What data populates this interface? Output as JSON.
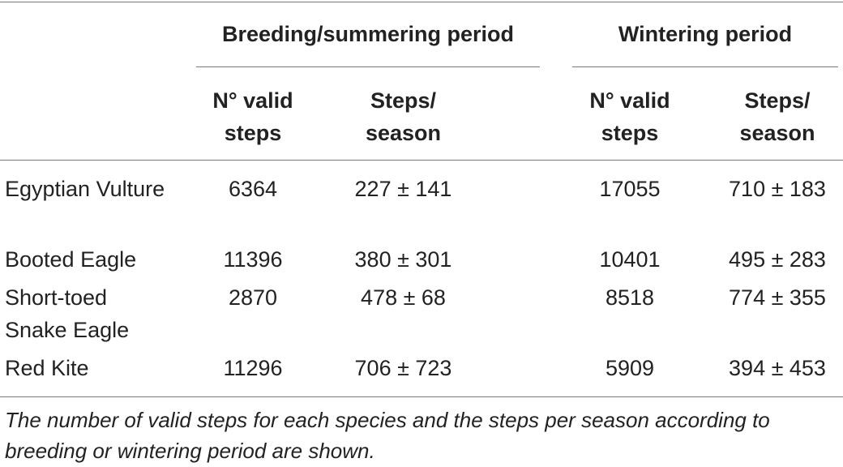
{
  "header": {
    "group_breeding": "Breeding/summering period",
    "group_wintering": "Wintering period",
    "col_valid_steps_line1": "N° valid",
    "col_valid_steps_line2": "steps",
    "col_steps_season_line1": "Steps/",
    "col_steps_season_line2": "season"
  },
  "rows": [
    {
      "species": "Egyptian Vulture",
      "breeding_valid_steps": "6364",
      "breeding_steps_season": "227 ± 141",
      "wintering_valid_steps": "17055",
      "wintering_steps_season": "710 ± 183"
    },
    {
      "species": "Booted Eagle",
      "breeding_valid_steps": "11396",
      "breeding_steps_season": "380 ± 301",
      "wintering_valid_steps": "10401",
      "wintering_steps_season": "495 ± 283"
    },
    {
      "species": "Short-toed Snake Eagle",
      "breeding_valid_steps": "2870",
      "breeding_steps_season": "478 ± 68",
      "wintering_valid_steps": "8518",
      "wintering_steps_season": "774 ± 355"
    },
    {
      "species": "Red Kite",
      "breeding_valid_steps": "11296",
      "breeding_steps_season": "706 ± 723",
      "wintering_valid_steps": "5909",
      "wintering_steps_season": "394 ± 453"
    }
  ],
  "caption": "The number of valid steps for each species and the steps per season according to breeding or wintering period are shown."
}
